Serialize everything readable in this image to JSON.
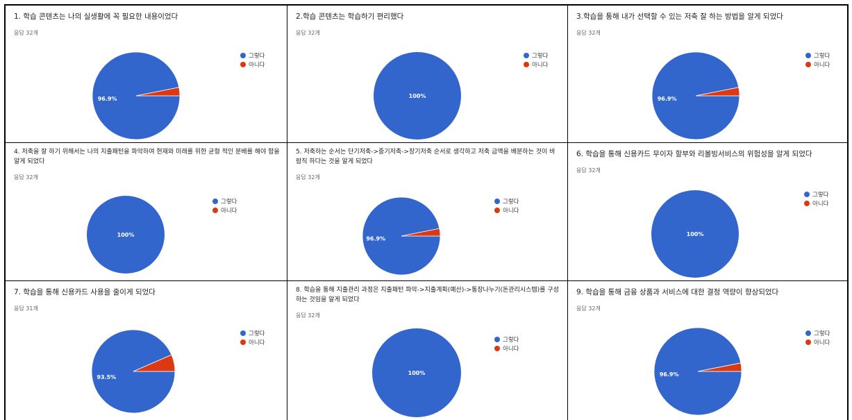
{
  "legend_labels": [
    "그렇다",
    "아니다"
  ],
  "colors": {
    "yes": "#3366cc",
    "no": "#dc3912",
    "pct_text": "#ffffff"
  },
  "chart_data": [
    {
      "type": "pie",
      "title": "1. 학습 콘텐츠는 나의 실생활에 꼭 필요한 내용이었다",
      "subtitle": "응답 32개",
      "categories": [
        "그렇다",
        "아니다"
      ],
      "values": [
        96.9,
        3.1
      ],
      "slice_labels": [
        "96.9%",
        ""
      ],
      "legend": "right"
    },
    {
      "type": "pie",
      "title": "2.학습 콘텐츠는 학습하기 편리했다",
      "subtitle": "응답 32개",
      "categories": [
        "그렇다",
        "아니다"
      ],
      "values": [
        100,
        0
      ],
      "slice_labels": [
        "100%",
        ""
      ],
      "legend": "right"
    },
    {
      "type": "pie",
      "title": "3.학습을 통해 내가 선택할 수 있는 저축 잘 하는 방법을 알게 되었다",
      "subtitle": "응답 32개",
      "categories": [
        "그렇다",
        "아니다"
      ],
      "values": [
        96.9,
        3.1
      ],
      "slice_labels": [
        "96.9%",
        ""
      ],
      "legend": "right"
    },
    {
      "type": "pie",
      "title": "4. 저축을 잘 하기 위해서는 나의 지출패턴을 파악하여 현재와 미래를 위한 균형 적인 분배를 해야 함을 알게 되었다",
      "subtitle": "응답 32개",
      "categories": [
        "그렇다",
        "아니다"
      ],
      "values": [
        100,
        0
      ],
      "slice_labels": [
        "100%",
        ""
      ],
      "legend": "right"
    },
    {
      "type": "pie",
      "title": "5. 저축하는 순서는 단기저축->중기저축->장기저축 순서로 생각하고 저축 금액을 배분하는 것이 바람직 하다는 것을 알게 되었다",
      "subtitle": "응답 32개",
      "categories": [
        "그렇다",
        "아니다"
      ],
      "values": [
        96.9,
        3.1
      ],
      "slice_labels": [
        "96.9%",
        ""
      ],
      "legend": "right"
    },
    {
      "type": "pie",
      "title": "6. 학습을 통해 신용카드 무이자 할부와 리볼빙서비스의 위험성을 알게 되었다",
      "subtitle": "응답 32개",
      "categories": [
        "그렇다",
        "아니다"
      ],
      "values": [
        100,
        0
      ],
      "slice_labels": [
        "100%",
        ""
      ],
      "legend": "right"
    },
    {
      "type": "pie",
      "title": "7. 학습을 통해 신용카드 사용을 줄이게 되었다",
      "subtitle": "응답 31개",
      "categories": [
        "그렇다",
        "아니다"
      ],
      "values": [
        93.5,
        6.5
      ],
      "slice_labels": [
        "93.5%",
        ""
      ],
      "legend": "right"
    },
    {
      "type": "pie",
      "title": "8. 학습을 통해 지출관리 과정은 지출패턴 파악->지출계획(예산)->통장나누기(돈관리시스템)를 구성하는 것임을 알게 되었다",
      "subtitle": "응답 32개",
      "categories": [
        "그렇다",
        "아니다"
      ],
      "values": [
        100,
        0
      ],
      "slice_labels": [
        "100%",
        ""
      ],
      "legend": "right"
    },
    {
      "type": "pie",
      "title": "9. 학습을 통해 금융 상품과 서비스에 대한 결정 역량이 향상되었다",
      "subtitle": "응답 32개",
      "categories": [
        "그렇다",
        "아니다"
      ],
      "values": [
        96.9,
        3.1
      ],
      "slice_labels": [
        "96.9%",
        ""
      ],
      "legend": "right"
    }
  ]
}
